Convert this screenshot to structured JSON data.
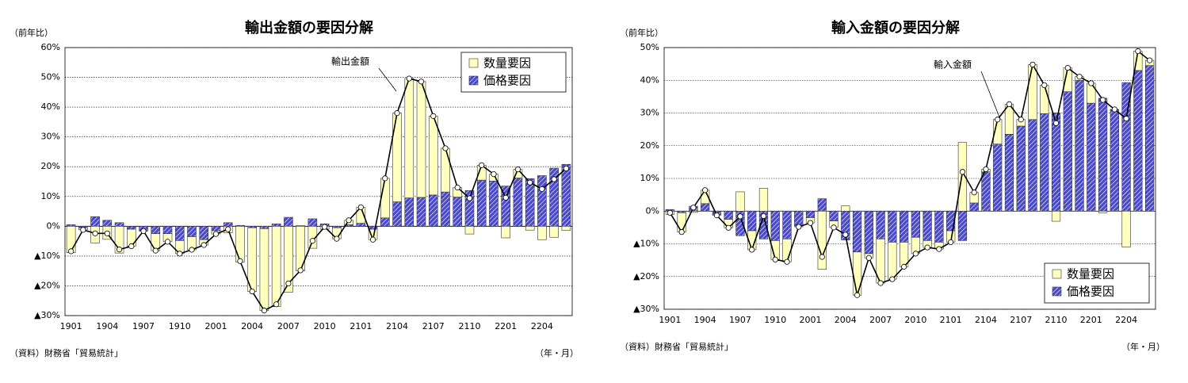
{
  "chart_data": [
    {
      "type": "bar",
      "title": "輸出金額の要因分解",
      "y_label": "（前年比）",
      "source": "（資料）財務省「貿易統計」",
      "x_label": "（年・月）",
      "categories": [
        "1901",
        null,
        null,
        "1904",
        null,
        null,
        "1907",
        null,
        null,
        "1910",
        null,
        null,
        "2001",
        null,
        null,
        "2004",
        null,
        null,
        "2007",
        null,
        null,
        "2010",
        null,
        null,
        "2101",
        null,
        null,
        "2104",
        null,
        null,
        "2107",
        null,
        null,
        "2110",
        null,
        null,
        "2201",
        null,
        null,
        "2204",
        null,
        null
      ],
      "series": [
        {
          "name": "数量要因",
          "color": "#ffffc0",
          "values": [
            -8.9,
            -0.7,
            -5.6,
            -4.4,
            -9.0,
            -5.7,
            -0.1,
            -5.7,
            -2.7,
            -4.4,
            -4.4,
            -1.8,
            -1.1,
            -2.2,
            -12.0,
            -21.4,
            -27.5,
            -27.0,
            -22.2,
            -15.0,
            -7.4,
            -1.0,
            -3.7,
            1.5,
            5.4,
            -3.5,
            13.3,
            29.8,
            40.1,
            38.9,
            26.5,
            14.7,
            3.2,
            -2.6,
            5.0,
            2.3,
            -3.9,
            2.9,
            -1.3,
            -4.5,
            -3.7,
            -1.4
          ]
        },
        {
          "name": "価格要因",
          "color": "#4a4ac8",
          "values": [
            0.5,
            -0.5,
            3.2,
            2.0,
            1.2,
            -1.0,
            -1.5,
            -2.5,
            -2.5,
            -4.8,
            -3.5,
            -4.5,
            -1.5,
            1.2,
            0.3,
            -0.5,
            -0.8,
            0.8,
            3.0,
            0.2,
            2.5,
            0.8,
            -0.5,
            0.5,
            1.0,
            -1.0,
            2.8,
            8.2,
            9.5,
            9.7,
            10.5,
            11.5,
            9.8,
            12.0,
            15.5,
            15.2,
            13.5,
            16.2,
            16.0,
            17.0,
            19.5,
            20.8
          ]
        },
        {
          "name": "輸出金額",
          "color": "#000000",
          "type": "line",
          "values": [
            -8.4,
            -1.2,
            -2.4,
            -2.4,
            -7.8,
            -6.7,
            -1.6,
            -8.2,
            -5.2,
            -9.2,
            -7.9,
            -6.3,
            -2.6,
            -1.0,
            -11.7,
            -21.9,
            -28.3,
            -26.2,
            -19.2,
            -14.8,
            -4.9,
            -0.2,
            -4.2,
            2.0,
            6.4,
            -4.5,
            16.1,
            38.0,
            49.6,
            48.6,
            37.0,
            26.2,
            13.0,
            9.4,
            20.5,
            17.5,
            9.6,
            19.1,
            14.7,
            12.5,
            15.8,
            19.4
          ]
        }
      ],
      "ylim": [
        -30,
        60
      ],
      "yticks": [
        {
          "value": 60,
          "label": "60%"
        },
        {
          "value": 50,
          "label": "50%"
        },
        {
          "value": 40,
          "label": "40%"
        },
        {
          "value": 30,
          "label": "30%"
        },
        {
          "value": 20,
          "label": "20%"
        },
        {
          "value": 10,
          "label": "10%"
        },
        {
          "value": 0,
          "label": "0%"
        },
        {
          "value": -10,
          "label": "▲10%"
        },
        {
          "value": -20,
          "label": "▲20%"
        },
        {
          "value": -30,
          "label": "▲30%"
        }
      ],
      "grid": true,
      "stacked": true,
      "legend": "top-right"
    },
    {
      "type": "bar",
      "title": "輸入金額の要因分解",
      "y_label": "（前年比）",
      "source": "（資料）財務省「貿易統計」",
      "x_label": "（年・月）",
      "categories": [
        "1901",
        null,
        null,
        "1904",
        null,
        null,
        "1907",
        null,
        null,
        "1910",
        null,
        null,
        "2001",
        null,
        null,
        "2004",
        null,
        null,
        "2007",
        null,
        null,
        "2010",
        null,
        null,
        "2101",
        null,
        null,
        "2104",
        null,
        null,
        "2107",
        null,
        null,
        "2110",
        null,
        null,
        "2201",
        null,
        null,
        "2204",
        null,
        null
      ],
      "series": [
        {
          "name": "数量要因",
          "color": "#ffffc0",
          "values": [
            -1.0,
            -5.9,
            -0.4,
            4.1,
            -0.3,
            -2.6,
            5.9,
            -5.8,
            7.0,
            -5.8,
            -7.0,
            -0.3,
            -1.6,
            -17.8,
            -2.0,
            1.6,
            -13.2,
            -1.3,
            -13.5,
            -11.3,
            -7.5,
            -5.0,
            -2.1,
            -2.1,
            -3.5,
            21.0,
            3.2,
            0.8,
            7.5,
            9.2,
            2.0,
            16.8,
            8.7,
            -3.1,
            7.3,
            1.1,
            6.1,
            -0.5,
            0.1,
            -11.0,
            5.9,
            1.6
          ]
        },
        {
          "name": "価格要因",
          "color": "#4a4ac8",
          "values": [
            0.5,
            -0.5,
            1.5,
            2.3,
            -1.0,
            -2.5,
            -7.5,
            -6.0,
            -8.5,
            -9.0,
            -8.5,
            -4.5,
            -2.0,
            3.8,
            -3.0,
            -8.8,
            -12.5,
            -13.0,
            -8.5,
            -9.5,
            -9.5,
            -8.0,
            -9.0,
            -9.5,
            -6.0,
            -9.0,
            2.5,
            12.0,
            20.5,
            23.5,
            26.0,
            28.0,
            29.8,
            30.0,
            36.5,
            40.0,
            33.0,
            34.5,
            31.0,
            39.3,
            43.0,
            44.5
          ]
        },
        {
          "name": "輸入金額",
          "color": "#000000",
          "type": "line",
          "values": [
            -0.5,
            -6.4,
            1.1,
            6.4,
            -1.3,
            -5.1,
            -1.6,
            -11.8,
            -1.5,
            -14.8,
            -15.5,
            -4.8,
            -3.6,
            -14.0,
            -5.0,
            -7.2,
            -25.7,
            -14.3,
            -22.0,
            -20.8,
            -17.0,
            -13.0,
            -11.1,
            -11.6,
            -9.5,
            12.0,
            5.7,
            12.8,
            28.0,
            32.7,
            28.0,
            44.8,
            38.5,
            26.9,
            43.8,
            41.1,
            39.1,
            34.0,
            31.1,
            28.3,
            48.9,
            46.1
          ]
        }
      ],
      "ylim": [
        -30,
        50
      ],
      "yticks": [
        {
          "value": 50,
          "label": "50%"
        },
        {
          "value": 40,
          "label": "40%"
        },
        {
          "value": 30,
          "label": "30%"
        },
        {
          "value": 20,
          "label": "20%"
        },
        {
          "value": 10,
          "label": "10%"
        },
        {
          "value": 0,
          "label": "0%"
        },
        {
          "value": -10,
          "label": "▲10%"
        },
        {
          "value": -20,
          "label": "▲20%"
        },
        {
          "value": -30,
          "label": "▲30%"
        }
      ],
      "grid": true,
      "stacked": true,
      "legend": "bottom-right"
    }
  ]
}
